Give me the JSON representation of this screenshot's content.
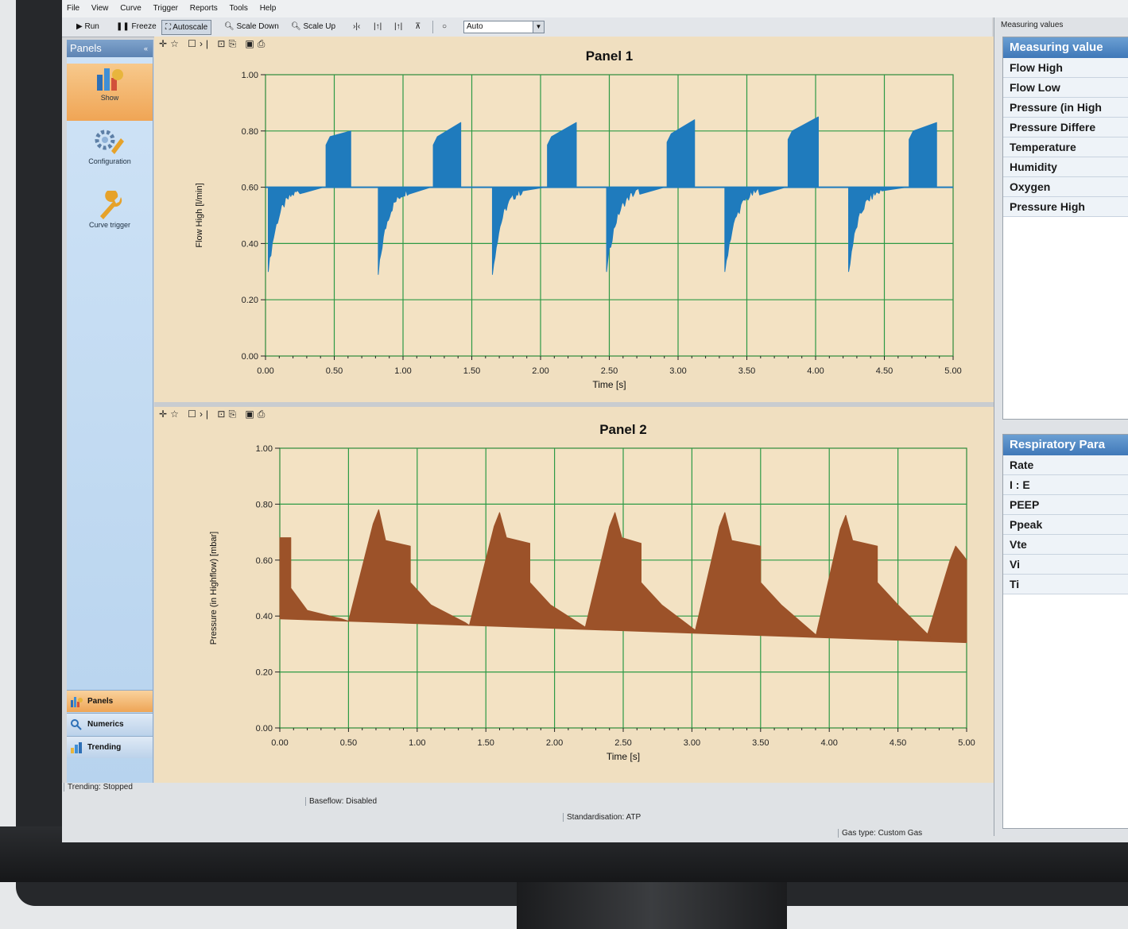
{
  "menu": [
    "File",
    "View",
    "Curve",
    "Trigger",
    "Reports",
    "Tools",
    "Help"
  ],
  "toolbar": {
    "run": "Run",
    "freeze": "Freeze",
    "autoscale": "Autoscale",
    "scale_down": "Scale Down",
    "scale_up": "Scale Up",
    "auto_value": "Auto"
  },
  "sidebar": {
    "title": "Panels",
    "buttons": [
      {
        "label": "Show",
        "icon": "bar-chart-icon"
      },
      {
        "label": "Configuration",
        "icon": "gears-wrench-icon"
      },
      {
        "label": "Curve trigger",
        "icon": "wrench-icon"
      }
    ],
    "nav": [
      {
        "label": "Panels",
        "icon": "panels-icon"
      },
      {
        "label": "Numerics",
        "icon": "numerics-icon"
      },
      {
        "label": "Trending",
        "icon": "trending-icon"
      }
    ]
  },
  "status": {
    "trending": "Trending: Stopped",
    "baseflow": "Baseflow: Disabled",
    "standardisation": "Standardisation: ATP",
    "gas": "Gas type: Custom Gas"
  },
  "right": {
    "caption": "Measuring values",
    "measuring_title": "Measuring value",
    "measuring_items": [
      "Flow High",
      "Flow Low",
      "Pressure (in High",
      "Pressure Differe",
      "Temperature",
      "Humidity",
      "Oxygen",
      "Pressure High"
    ],
    "resp_title": "Respiratory Para",
    "resp_items": [
      "Rate",
      "I : E",
      "PEEP",
      "Ppeak",
      "Vte",
      "Vi",
      "Ti"
    ]
  },
  "chart_data": [
    {
      "type": "area",
      "title": "Panel 1",
      "xlabel": "Time [s]",
      "ylabel": "Flow High [l/min]",
      "xlim": [
        0,
        5
      ],
      "ylim": [
        0,
        1
      ],
      "x_ticks": [
        "0.00",
        "0.50",
        "1.00",
        "1.50",
        "2.00",
        "2.50",
        "3.00",
        "3.50",
        "4.00",
        "4.50",
        "5.00"
      ],
      "y_ticks": [
        "0.00",
        "0.20",
        "0.40",
        "0.60",
        "0.80",
        "1.00"
      ],
      "grid": true,
      "color": "#1f7bbd",
      "baseline": 0.6,
      "cycles": [
        {
          "expiration_start": 0.02,
          "trough": 0.3,
          "inspiration_start": 0.44,
          "inspiration_end": 0.62,
          "peak_start": 0.78,
          "peak_end": 0.8
        },
        {
          "expiration_start": 0.82,
          "trough": 0.29,
          "inspiration_start": 1.22,
          "inspiration_end": 1.42,
          "peak_start": 0.78,
          "peak_end": 0.83
        },
        {
          "expiration_start": 1.65,
          "trough": 0.29,
          "inspiration_start": 2.05,
          "inspiration_end": 2.26,
          "peak_start": 0.78,
          "peak_end": 0.83
        },
        {
          "expiration_start": 2.48,
          "trough": 0.3,
          "inspiration_start": 2.92,
          "inspiration_end": 3.12,
          "peak_start": 0.79,
          "peak_end": 0.84
        },
        {
          "expiration_start": 3.34,
          "trough": 0.3,
          "inspiration_start": 3.8,
          "inspiration_end": 4.02,
          "peak_start": 0.8,
          "peak_end": 0.85
        },
        {
          "expiration_start": 4.24,
          "trough": 0.3,
          "inspiration_start": 4.68,
          "inspiration_end": 4.88,
          "peak_start": 0.8,
          "peak_end": 0.83
        }
      ]
    },
    {
      "type": "area",
      "title": "Panel 2",
      "xlabel": "Time [s]",
      "ylabel": "Pressure (in Highflow) [mbar]",
      "xlim": [
        0,
        5
      ],
      "ylim": [
        0,
        1
      ],
      "x_ticks": [
        "0.00",
        "0.50",
        "1.00",
        "1.50",
        "2.00",
        "2.50",
        "3.00",
        "3.50",
        "4.00",
        "4.50",
        "5.00"
      ],
      "y_ticks": [
        "0.00",
        "0.20",
        "0.40",
        "0.60",
        "0.80",
        "1.00"
      ],
      "grid": true,
      "color": "#9c5229",
      "baseline": 0.39,
      "cycles": [
        {
          "start": 0.0,
          "peak": 0.68,
          "plateau": 0.63,
          "plateau_end": 0.08
        },
        {
          "start": 0.5,
          "peak": 0.78,
          "plateau": 0.65,
          "plateau_end": 0.95
        },
        {
          "start": 1.38,
          "peak": 0.77,
          "plateau": 0.66,
          "plateau_end": 1.82
        },
        {
          "start": 2.22,
          "peak": 0.77,
          "plateau": 0.66,
          "plateau_end": 2.63
        },
        {
          "start": 3.02,
          "peak": 0.77,
          "plateau": 0.65,
          "plateau_end": 3.5
        },
        {
          "start": 3.9,
          "peak": 0.76,
          "plateau": 0.65,
          "plateau_end": 4.35
        },
        {
          "start": 4.7,
          "peak": 0.65,
          "plateau": 0.6,
          "plateau_end": 5.0
        }
      ]
    }
  ]
}
